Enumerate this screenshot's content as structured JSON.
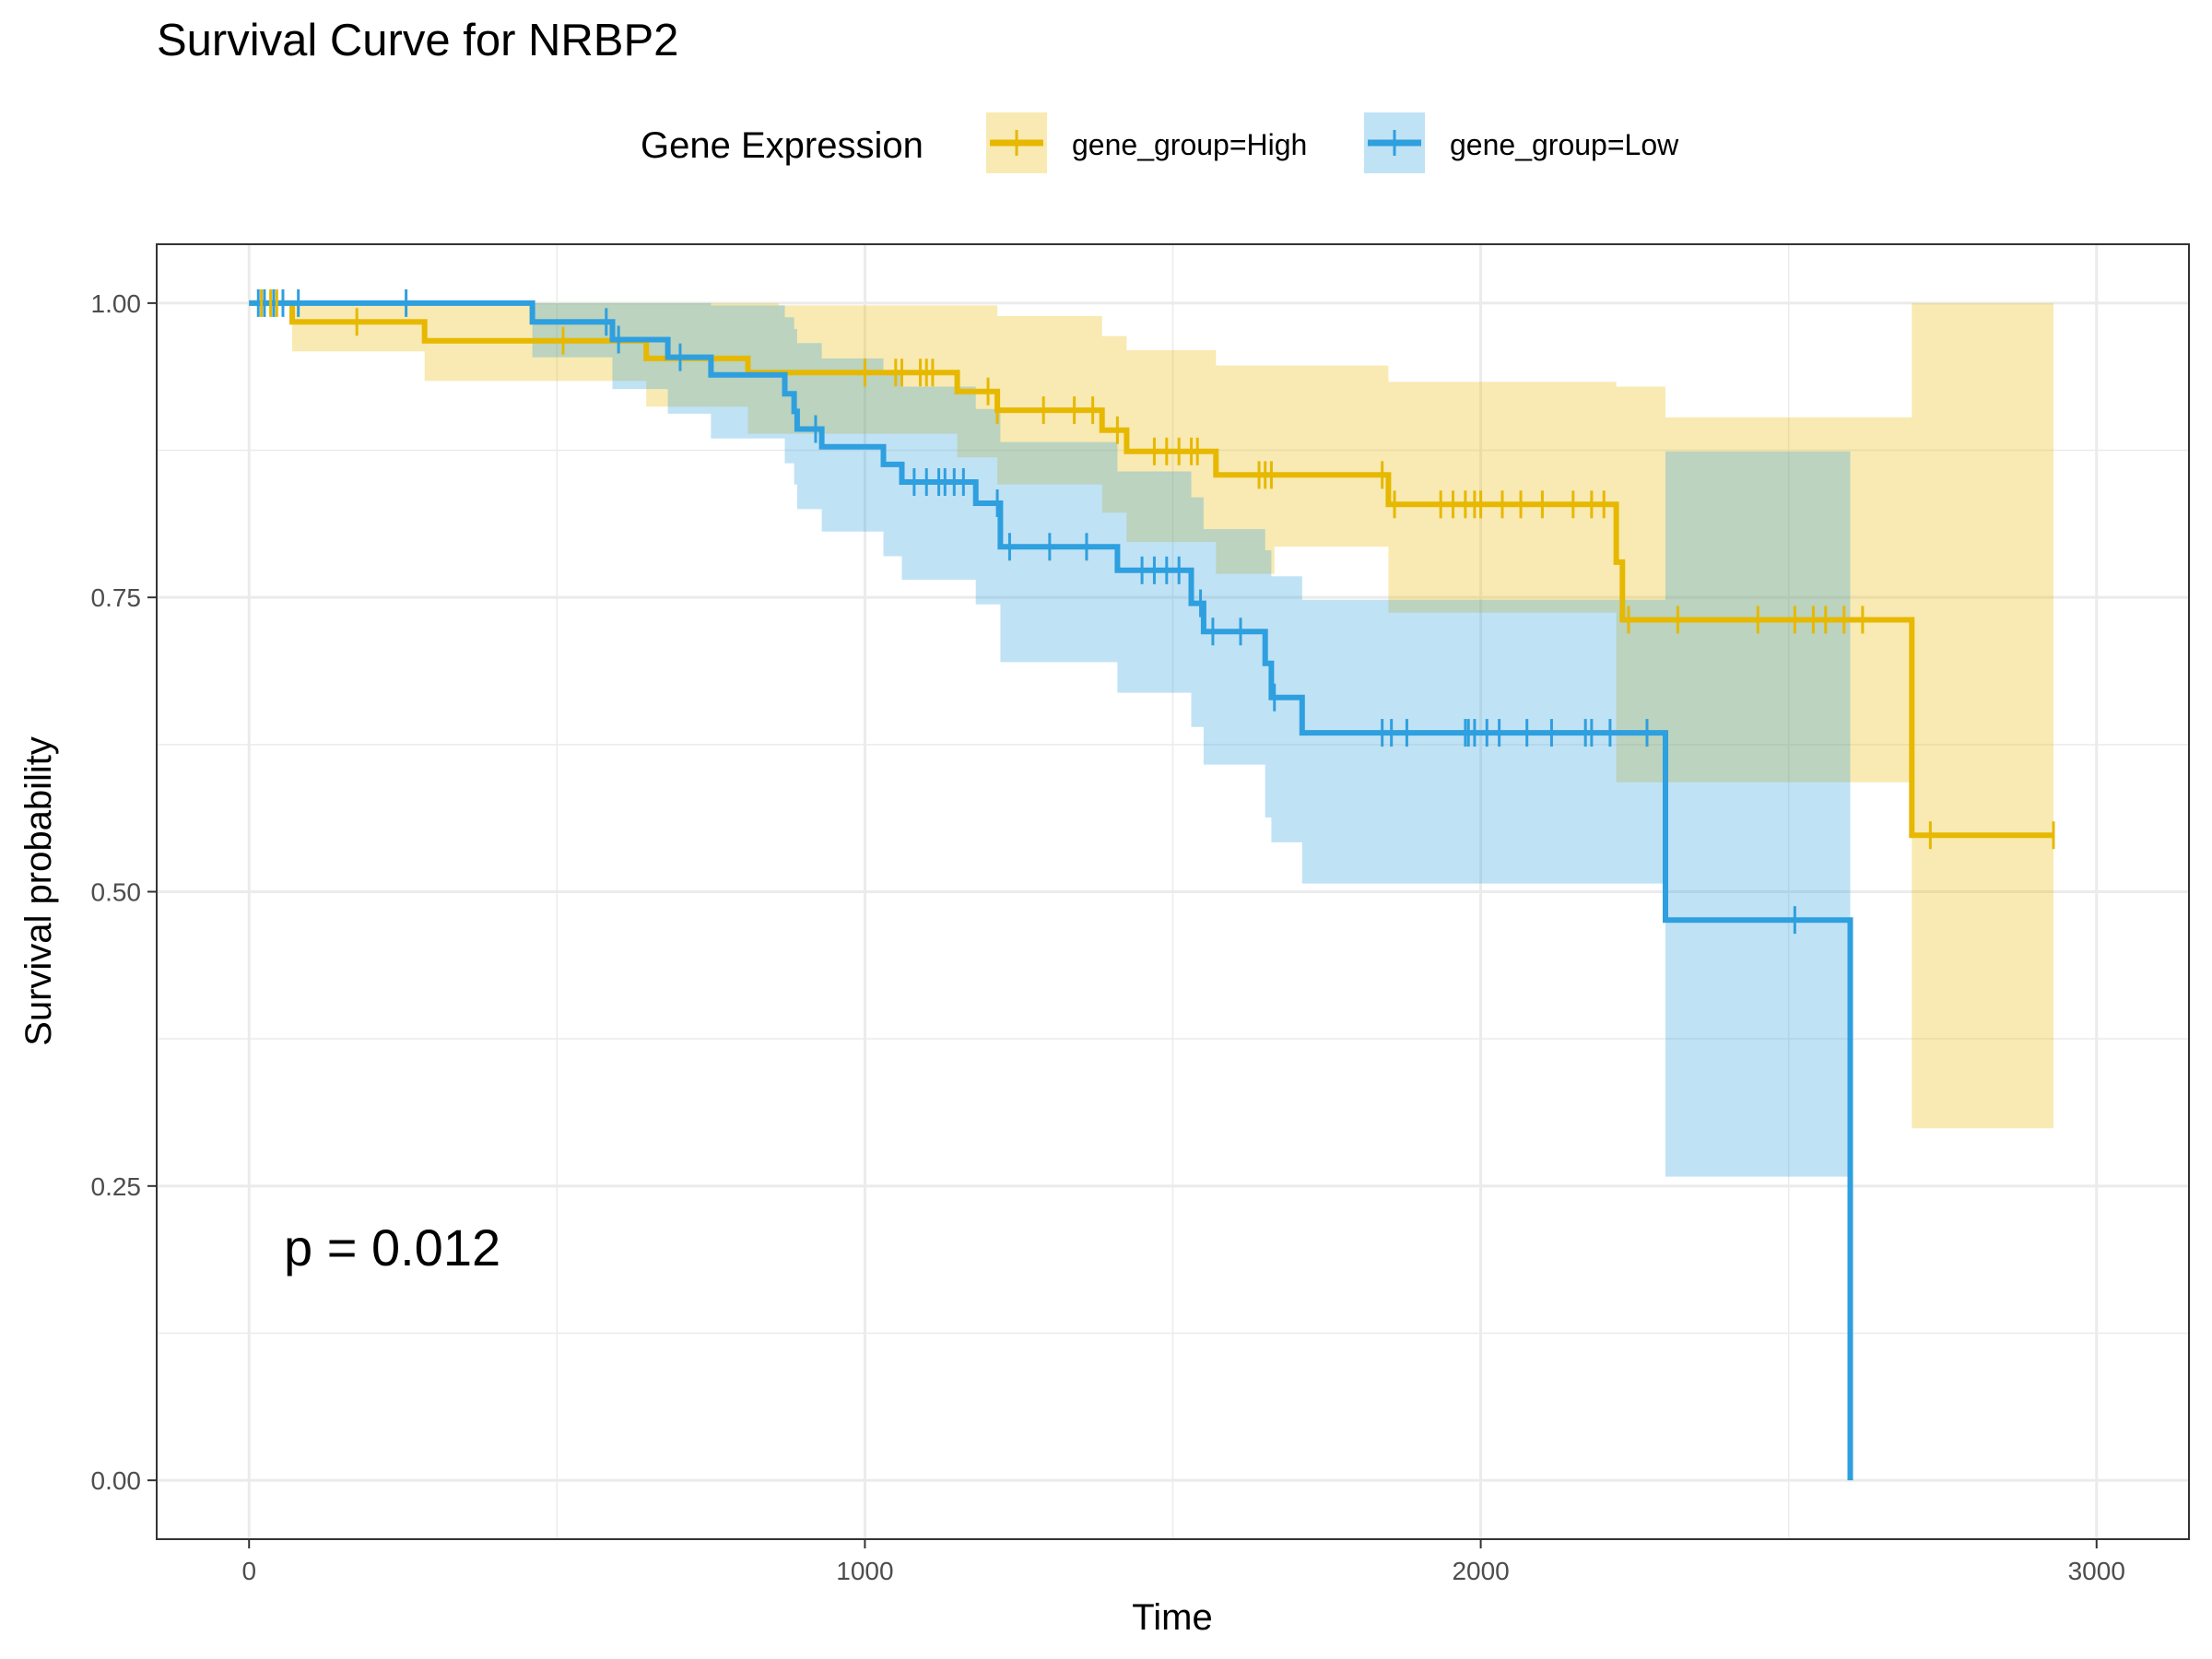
{
  "chart_data": {
    "type": "line",
    "subtype": "kaplan-meier-survival",
    "title": "Survival Curve for NRBP2",
    "xlabel": "Time",
    "ylabel": "Survival probability",
    "xlim": [
      -150,
      3150
    ],
    "ylim": [
      -0.05,
      1.05
    ],
    "x_ticks": [
      0,
      1000,
      2000,
      3000
    ],
    "x_tick_labels": [
      "0",
      "1000",
      "2000",
      "3000"
    ],
    "y_ticks": [
      0,
      0.25,
      0.5,
      0.75,
      1
    ],
    "y_tick_labels": [
      "0.00",
      "0.25",
      "0.50",
      "0.75",
      "1.00"
    ],
    "grid": true,
    "legend": {
      "title": "Gene Expression",
      "position": "top"
    },
    "annotation": "p = 0.012",
    "series": [
      {
        "name": "gene_group=High",
        "color": "#E7B800",
        "steps": [
          [
            0,
            1.0
          ],
          [
            70,
            0.984
          ],
          [
            285,
            0.968
          ],
          [
            645,
            0.953
          ],
          [
            810,
            0.941
          ],
          [
            1150,
            0.925
          ],
          [
            1215,
            0.909
          ],
          [
            1385,
            0.892
          ],
          [
            1425,
            0.874
          ],
          [
            1570,
            0.854
          ],
          [
            1850,
            0.829
          ],
          [
            2220,
            0.78
          ],
          [
            2230,
            0.731
          ],
          [
            2700,
            0.548
          ],
          [
            2930,
            0.548
          ]
        ],
        "ci": [
          [
            0,
            1.0,
            1.0
          ],
          [
            70,
            0.959,
            1.0
          ],
          [
            285,
            0.934,
            1.0
          ],
          [
            645,
            0.912,
            1.0
          ],
          [
            810,
            0.889,
            1.0
          ],
          [
            860,
            0.889,
            0.998
          ],
          [
            1150,
            0.869,
            0.998
          ],
          [
            1215,
            0.846,
            0.989
          ],
          [
            1385,
            0.822,
            0.972
          ],
          [
            1425,
            0.797,
            0.96
          ],
          [
            1570,
            0.77,
            0.947
          ],
          [
            1665,
            0.793,
            0.947
          ],
          [
            1850,
            0.737,
            0.933
          ],
          [
            2220,
            0.593,
            0.929
          ],
          [
            2300,
            0.593,
            0.903
          ],
          [
            2600,
            0.593,
            0.903
          ],
          [
            2700,
            0.299,
            1.0
          ],
          [
            2930,
            0.299,
            1.0
          ]
        ],
        "censor_times": [
          20,
          35,
          45,
          175,
          510,
          1000,
          1050,
          1060,
          1090,
          1100,
          1110,
          1200,
          1215,
          1290,
          1340,
          1370,
          1410,
          1470,
          1490,
          1510,
          1530,
          1540,
          1640,
          1650,
          1660,
          1840,
          1860,
          1935,
          1955,
          1975,
          1990,
          2000,
          2035,
          2065,
          2100,
          2150,
          2180,
          2200,
          2240,
          2320,
          2450,
          2510,
          2540,
          2560,
          2590,
          2620,
          2730,
          2930
        ]
      },
      {
        "name": "gene_group=Low",
        "color": "#2E9FDF",
        "steps": [
          [
            0,
            1.0
          ],
          [
            460,
            0.984
          ],
          [
            590,
            0.969
          ],
          [
            680,
            0.954
          ],
          [
            750,
            0.939
          ],
          [
            870,
            0.923
          ],
          [
            885,
            0.908
          ],
          [
            890,
            0.893
          ],
          [
            930,
            0.878
          ],
          [
            1030,
            0.863
          ],
          [
            1060,
            0.848
          ],
          [
            1180,
            0.83
          ],
          [
            1220,
            0.793
          ],
          [
            1410,
            0.773
          ],
          [
            1530,
            0.745
          ],
          [
            1550,
            0.721
          ],
          [
            1650,
            0.694
          ],
          [
            1660,
            0.665
          ],
          [
            1710,
            0.635
          ],
          [
            2300,
            0.476
          ],
          [
            2600,
            0.0
          ]
        ],
        "ci": [
          [
            0,
            1.0,
            1.0
          ],
          [
            460,
            0.954,
            1.0
          ],
          [
            590,
            0.927,
            1.0
          ],
          [
            680,
            0.906,
            1.0
          ],
          [
            750,
            0.885,
            0.998
          ],
          [
            870,
            0.864,
            0.988
          ],
          [
            885,
            0.846,
            0.978
          ],
          [
            890,
            0.825,
            0.966
          ],
          [
            930,
            0.806,
            0.953
          ],
          [
            1030,
            0.785,
            0.94
          ],
          [
            1060,
            0.765,
            0.929
          ],
          [
            1180,
            0.744,
            0.91
          ],
          [
            1220,
            0.695,
            0.882
          ],
          [
            1410,
            0.669,
            0.857
          ],
          [
            1530,
            0.64,
            0.835
          ],
          [
            1550,
            0.608,
            0.808
          ],
          [
            1650,
            0.563,
            0.79
          ],
          [
            1660,
            0.542,
            0.768
          ],
          [
            1710,
            0.507,
            0.748
          ],
          [
            2300,
            0.258,
            0.874
          ],
          [
            2600,
            0.258,
            0.874
          ]
        ],
        "censor_times": [
          15,
          25,
          40,
          55,
          80,
          255,
          580,
          600,
          700,
          920,
          1080,
          1100,
          1120,
          1130,
          1145,
          1160,
          1215,
          1235,
          1300,
          1360,
          1450,
          1470,
          1490,
          1510,
          1545,
          1565,
          1610,
          1665,
          1840,
          1855,
          1880,
          1975,
          1980,
          1990,
          2010,
          2030,
          2075,
          2115,
          2170,
          2180,
          2210,
          2270,
          2510
        ]
      }
    ]
  }
}
